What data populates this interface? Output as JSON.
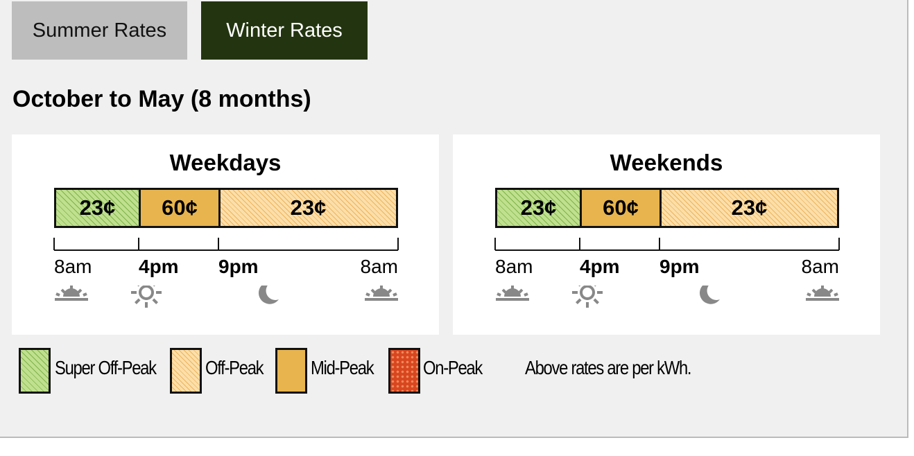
{
  "tabs": [
    "Summer Rates",
    "Winter Rates"
  ],
  "heading": "October to May (8 months)",
  "panels": [
    {
      "title": "Weekdays",
      "segments": [
        "23¢",
        "60¢",
        "23¢"
      ],
      "times": [
        "8am",
        "4pm",
        "9pm",
        "8am"
      ]
    },
    {
      "title": "Weekends",
      "segments": [
        "23¢",
        "60¢",
        "23¢"
      ],
      "times": [
        "8am",
        "4pm",
        "9pm",
        "8am"
      ]
    }
  ],
  "legend": [
    "Super Off-Peak",
    "Off-Peak",
    "Mid-Peak",
    "On-Peak"
  ],
  "note": "Above rates are per kWh."
}
